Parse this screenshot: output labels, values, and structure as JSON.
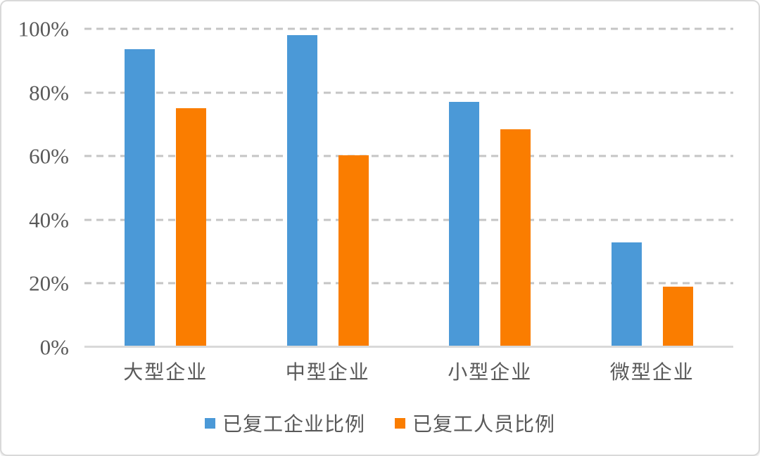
{
  "chart_data": {
    "type": "bar",
    "title": "",
    "categories": [
      "大型企业",
      "中型企业",
      "小型企业",
      "微型企业"
    ],
    "series": [
      {
        "name": "已复工企业比例",
        "color": "#4B99D7",
        "values": [
          93.5,
          98,
          77,
          33
        ]
      },
      {
        "name": "已复工人员比例",
        "color": "#FA7D00",
        "values": [
          75,
          60.3,
          68.5,
          19
        ]
      }
    ],
    "xlabel": "",
    "ylabel": "",
    "ylim": [
      0,
      100
    ],
    "y_ticks": [
      "0%",
      "20%",
      "40%",
      "60%",
      "80%",
      "100%"
    ],
    "grid": "dashed horizontal",
    "legend_position": "bottom-center",
    "layout": {
      "gridline_color": "#c5c5c5",
      "baseline_color": "#d9d9d9",
      "text_color": "#595959",
      "background_color": "#ffffff",
      "border_color": "#d9d9d9"
    }
  }
}
